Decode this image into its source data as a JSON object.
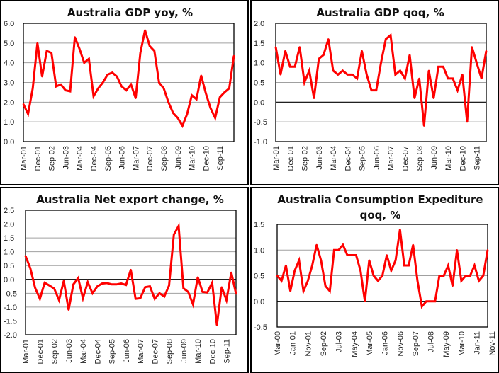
{
  "chart_data": [
    {
      "type": "line",
      "title": [
        "Australia GDP yoy, %"
      ],
      "xlabel": "",
      "ylabel": "",
      "ylim": [
        0,
        6
      ],
      "yticks": [
        "0.0",
        "1.0",
        "2.0",
        "3.0",
        "4.0",
        "5.0",
        "6.0"
      ],
      "ytick_values": [
        0,
        1,
        2,
        3,
        4,
        5,
        6
      ],
      "xtick_labels": [
        "Mar-01",
        "Dec-01",
        "Sep-02",
        "Jun-03",
        "Mar-04",
        "Dec-04",
        "Sep-05",
        "Jun-06",
        "Mar-07",
        "Dec-07",
        "Sep-08",
        "Jun-09",
        "Mar-10",
        "Dec-10",
        "Sep-11"
      ],
      "xtick_step": 3,
      "grid": true,
      "zero_line": false,
      "color": "#ff0000",
      "series": [
        {
          "name": "GDP yoy",
          "values": [
            1.9,
            1.4,
            2.7,
            5.0,
            3.3,
            4.6,
            4.5,
            2.8,
            2.9,
            2.6,
            2.55,
            5.3,
            4.7,
            4.0,
            4.2,
            2.3,
            2.7,
            3.0,
            3.4,
            3.5,
            3.3,
            2.8,
            2.6,
            2.9,
            2.2,
            4.5,
            5.65,
            4.85,
            4.6,
            3.0,
            2.7,
            2.0,
            1.45,
            1.2,
            0.8,
            1.4,
            2.35,
            2.15,
            3.35,
            2.45,
            1.7,
            1.2,
            2.25,
            2.5,
            2.7,
            4.35
          ]
        }
      ]
    },
    {
      "type": "line",
      "title": [
        "Australia GDP qoq, %"
      ],
      "xlabel": "",
      "ylabel": "",
      "ylim": [
        -1,
        2
      ],
      "yticks": [
        "-1.0",
        "-0.5",
        "0.0",
        "0.5",
        "1.0",
        "1.5",
        "2.0"
      ],
      "ytick_values": [
        -1,
        -0.5,
        0,
        0.5,
        1,
        1.5,
        2
      ],
      "xtick_labels": [
        "Mar-01",
        "Dec-01",
        "Sep-02",
        "Jun-03",
        "Mar-04",
        "Dec-04",
        "Sep-05",
        "Jun-06",
        "Mar-07",
        "Dec-07",
        "Sep-08",
        "Jun-09",
        "Mar-10",
        "Dec-10",
        "Sep-11"
      ],
      "xtick_step": 3,
      "grid": true,
      "zero_line": true,
      "color": "#ff0000",
      "series": [
        {
          "name": "GDP qoq",
          "values": [
            1.4,
            0.7,
            1.3,
            0.9,
            0.9,
            1.4,
            0.5,
            0.8,
            0.1,
            1.1,
            1.2,
            1.6,
            0.8,
            0.7,
            0.8,
            0.7,
            0.7,
            0.6,
            1.3,
            0.7,
            0.3,
            0.3,
            1.0,
            1.6,
            1.7,
            0.7,
            0.8,
            0.6,
            1.2,
            0.1,
            0.6,
            -0.6,
            0.8,
            0.1,
            0.9,
            0.9,
            0.6,
            0.6,
            0.3,
            0.7,
            -0.5,
            1.4,
            1.0,
            0.6,
            1.3
          ]
        }
      ]
    },
    {
      "type": "line",
      "title": [
        "Australia Net export change, %"
      ],
      "xlabel": "",
      "ylabel": "",
      "ylim": [
        -2,
        2.5
      ],
      "yticks": [
        "-2.0",
        "-1.5",
        "-1.0",
        "-0.5",
        "0.0",
        "0.5",
        "1.0",
        "1.5",
        "2.0",
        "2.5"
      ],
      "ytick_values": [
        -2,
        -1.5,
        -1,
        -0.5,
        0,
        0.5,
        1,
        1.5,
        2,
        2.5
      ],
      "xtick_labels": [
        "Mar-01",
        "Dec-01",
        "Sep-02",
        "Jun-03",
        "Mar-04",
        "Dec-04",
        "Sep-05",
        "Jun-06",
        "Mar-07",
        "Dec-07",
        "Sep-08",
        "Jun-09",
        "Mar-10",
        "Dec-10",
        "Sep-11"
      ],
      "xtick_step": 3,
      "grid": true,
      "zero_line": true,
      "color": "#ff0000",
      "series": [
        {
          "name": "Net export change",
          "values": [
            0.85,
            0.4,
            -0.3,
            -0.7,
            -0.12,
            -0.22,
            -0.33,
            -0.75,
            -0.05,
            -1.1,
            -0.18,
            0.05,
            -0.68,
            -0.1,
            -0.5,
            -0.25,
            -0.15,
            -0.13,
            -0.18,
            -0.18,
            -0.15,
            -0.2,
            0.35,
            -0.7,
            -0.68,
            -0.28,
            -0.25,
            -0.7,
            -0.5,
            -0.62,
            -0.22,
            1.62,
            1.93,
            -0.32,
            -0.45,
            -0.9,
            0.08,
            -0.45,
            -0.47,
            -0.12,
            -1.65,
            -0.28,
            -0.75,
            0.25,
            -0.52
          ]
        }
      ]
    },
    {
      "type": "line",
      "title": [
        "Australia Consumption Expediture",
        "qoq, %"
      ],
      "xlabel": "",
      "ylabel": "",
      "ylim": [
        -0.5,
        1.5
      ],
      "yticks": [
        "-0.5",
        "0.0",
        "0.5",
        "1.0",
        "1.5"
      ],
      "ytick_values": [
        -0.5,
        0,
        0.5,
        1,
        1.5
      ],
      "xtick_labels": [
        "Mar-00",
        "Jan-01",
        "Nov-01",
        "Sep-02",
        "Jul-03",
        "May-04",
        "Mar-05",
        "Jan-06",
        "Nov-06",
        "Sep-07",
        "Jul-08",
        "May-09",
        "Mar-10",
        "Jan-11",
        "Nov-11"
      ],
      "xtick_step": 3.5,
      "grid": true,
      "zero_line": true,
      "color": "#ff0000",
      "series": [
        {
          "name": "Consumption qoq",
          "values": [
            0.5,
            0.4,
            0.7,
            0.2,
            0.6,
            0.8,
            0.2,
            0.4,
            0.7,
            1.1,
            0.8,
            0.3,
            0.2,
            1.0,
            1.0,
            1.1,
            0.9,
            0.9,
            0.9,
            0.6,
            0.0,
            0.8,
            0.5,
            0.4,
            0.5,
            0.9,
            0.6,
            0.8,
            1.4,
            0.7,
            0.7,
            1.1,
            0.4,
            -0.1,
            0.0,
            0.0,
            0.0,
            0.5,
            0.5,
            0.7,
            0.3,
            1.0,
            0.4,
            0.5,
            0.5,
            0.7,
            0.4,
            0.5,
            1.0
          ]
        }
      ]
    }
  ]
}
